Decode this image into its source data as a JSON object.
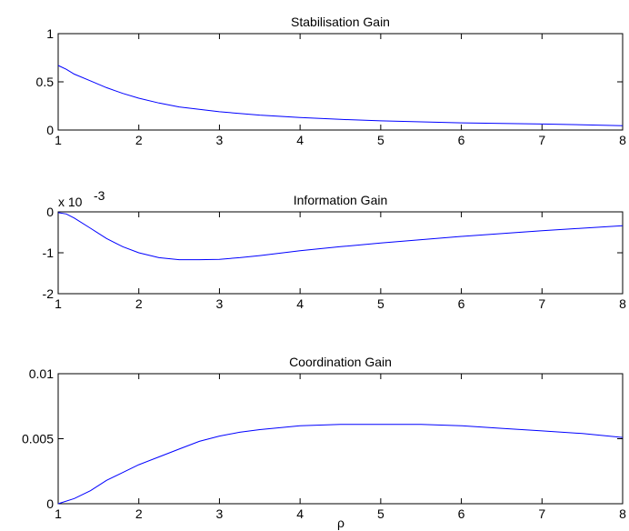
{
  "figure": {
    "xlabel": "ρ"
  },
  "chart_data": [
    {
      "type": "line",
      "title": "Stabilisation Gain",
      "xlim": [
        1,
        8
      ],
      "ylim": [
        0,
        1
      ],
      "xticks": [
        1,
        2,
        3,
        4,
        5,
        6,
        7,
        8
      ],
      "xtick_labels": [
        "1",
        "2",
        "3",
        "4",
        "5",
        "6",
        "7",
        "8"
      ],
      "yticks": [
        0,
        0.5,
        1
      ],
      "ytick_labels": [
        "0",
        "0.5",
        "1"
      ],
      "exponent_label": "",
      "grid": false,
      "color": "#0000ff",
      "x": [
        1.0,
        1.1,
        1.2,
        1.4,
        1.6,
        1.8,
        2.0,
        2.25,
        2.5,
        3.0,
        3.5,
        4.0,
        4.5,
        5.0,
        5.5,
        6.0,
        6.5,
        7.0,
        7.5,
        8.0
      ],
      "y": [
        0.67,
        0.63,
        0.58,
        0.51,
        0.44,
        0.38,
        0.33,
        0.28,
        0.24,
        0.19,
        0.155,
        0.13,
        0.11,
        0.095,
        0.085,
        0.075,
        0.068,
        0.062,
        0.055,
        0.045
      ]
    },
    {
      "type": "line",
      "title": "Information Gain",
      "xlim": [
        1,
        8
      ],
      "ylim": [
        -2,
        0
      ],
      "xticks": [
        1,
        2,
        3,
        4,
        5,
        6,
        7,
        8
      ],
      "xtick_labels": [
        "1",
        "2",
        "3",
        "4",
        "5",
        "6",
        "7",
        "8"
      ],
      "yticks": [
        -2,
        -1,
        0
      ],
      "ytick_labels": [
        "-2",
        "-1",
        "0"
      ],
      "exponent_label": "x 10",
      "exponent_power": "-3",
      "grid": false,
      "color": "#0000ff",
      "x": [
        1.0,
        1.1,
        1.2,
        1.4,
        1.6,
        1.8,
        2.0,
        2.25,
        2.5,
        2.75,
        3.0,
        3.25,
        3.5,
        4.0,
        4.5,
        5.0,
        5.5,
        6.0,
        6.5,
        7.0,
        7.5,
        8.0
      ],
      "y": [
        -0.02,
        -0.05,
        -0.15,
        -0.4,
        -0.65,
        -0.85,
        -1.0,
        -1.12,
        -1.17,
        -1.17,
        -1.16,
        -1.12,
        -1.07,
        -0.95,
        -0.85,
        -0.76,
        -0.68,
        -0.6,
        -0.53,
        -0.46,
        -0.4,
        -0.34
      ]
    },
    {
      "type": "line",
      "title": "Coordination Gain",
      "xlim": [
        1,
        8
      ],
      "ylim": [
        0,
        0.01
      ],
      "xticks": [
        1,
        2,
        3,
        4,
        5,
        6,
        7,
        8
      ],
      "xtick_labels": [
        "1",
        "2",
        "3",
        "4",
        "5",
        "6",
        "7",
        "8"
      ],
      "yticks": [
        0,
        0.005,
        0.01
      ],
      "ytick_labels": [
        "0",
        "0.005",
        "0.01"
      ],
      "exponent_label": "",
      "grid": false,
      "color": "#0000ff",
      "x": [
        1.0,
        1.2,
        1.4,
        1.6,
        1.8,
        2.0,
        2.25,
        2.5,
        2.75,
        3.0,
        3.25,
        3.5,
        4.0,
        4.5,
        5.0,
        5.5,
        6.0,
        6.5,
        7.0,
        7.5,
        8.0
      ],
      "y": [
        0.0,
        0.0004,
        0.001,
        0.0018,
        0.0024,
        0.003,
        0.0036,
        0.0042,
        0.0048,
        0.0052,
        0.0055,
        0.0057,
        0.006,
        0.0061,
        0.0061,
        0.0061,
        0.006,
        0.0058,
        0.0056,
        0.0054,
        0.0051
      ]
    }
  ]
}
